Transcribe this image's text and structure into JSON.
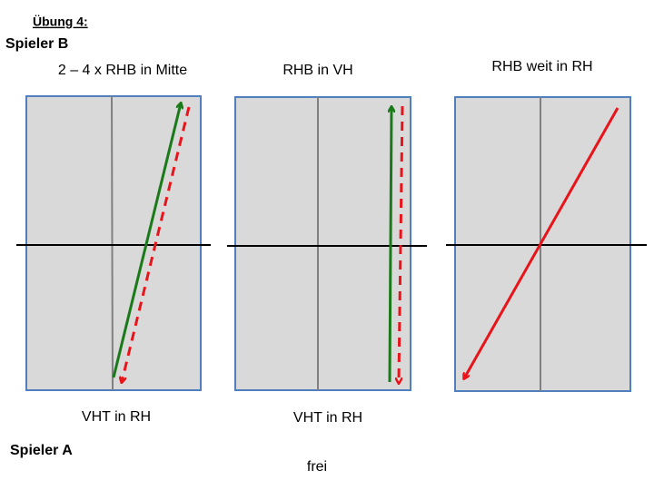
{
  "header": {
    "title": "Übung 4:",
    "player_top": "Spieler B"
  },
  "panels": [
    {
      "top_label": "2 – 4 x RHB in Mitte",
      "bottom_label": "VHT in RH"
    },
    {
      "top_label": "RHB in VH",
      "bottom_label": "VHT in RH"
    },
    {
      "top_label": "RHB weit in RH"
    }
  ],
  "footer": {
    "player_bottom": "Spieler A",
    "note": "frei"
  }
}
